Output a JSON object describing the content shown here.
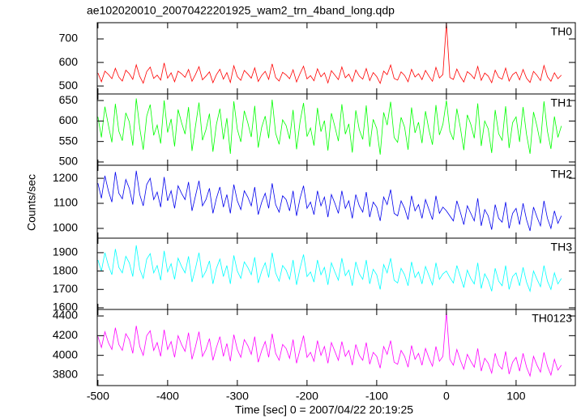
{
  "chart_data": {
    "type": "line",
    "title": "ae102020010_20070422201925_wam2_trn_4band_long.qdp",
    "xlabel": "Time [sec] 0 = 2007/04/22 20:19:25",
    "ylabel": "Counts/sec",
    "xlim": [
      -501,
      185
    ],
    "xticks": [
      -500,
      -400,
      -300,
      -200,
      -100,
      0,
      100
    ],
    "x": [
      -500,
      -495,
      -490,
      -485,
      -480,
      -475,
      -470,
      -465,
      -460,
      -455,
      -450,
      -445,
      -440,
      -435,
      -430,
      -425,
      -420,
      -415,
      -410,
      -405,
      -400,
      -395,
      -390,
      -385,
      -380,
      -375,
      -370,
      -365,
      -360,
      -355,
      -350,
      -345,
      -340,
      -335,
      -330,
      -325,
      -320,
      -315,
      -310,
      -305,
      -300,
      -295,
      -290,
      -285,
      -280,
      -275,
      -270,
      -265,
      -260,
      -255,
      -250,
      -245,
      -240,
      -235,
      -230,
      -225,
      -220,
      -215,
      -210,
      -205,
      -200,
      -195,
      -190,
      -185,
      -180,
      -175,
      -170,
      -165,
      -160,
      -155,
      -150,
      -145,
      -140,
      -135,
      -130,
      -125,
      -120,
      -115,
      -110,
      -105,
      -100,
      -95,
      -90,
      -85,
      -80,
      -75,
      -70,
      -65,
      -60,
      -55,
      -50,
      -45,
      -40,
      -35,
      -30,
      -25,
      -20,
      -15,
      -10,
      -5,
      0,
      5,
      10,
      15,
      20,
      25,
      30,
      35,
      40,
      45,
      50,
      55,
      60,
      65,
      70,
      75,
      80,
      85,
      90,
      95,
      100,
      105,
      110,
      115,
      120,
      125,
      130,
      135,
      140,
      145,
      150,
      155,
      160,
      165
    ],
    "series": [
      {
        "name": "TH0",
        "color": "#ff0000",
        "ylim": [
          466,
          769
        ],
        "yticks": [
          500,
          600,
          700
        ],
        "values": [
          555,
          518,
          563,
          549,
          531,
          575,
          538,
          521,
          567,
          552,
          528,
          590,
          541,
          512,
          561,
          580,
          532,
          546,
          525,
          598,
          533,
          556,
          518,
          563,
          552,
          537,
          570,
          520,
          549,
          582,
          526,
          542,
          560,
          514,
          548,
          571,
          529,
          557,
          515,
          586,
          540,
          524,
          566,
          551,
          533,
          577,
          519,
          545,
          562,
          528,
          594,
          536,
          521,
          558,
          547,
          531,
          569,
          517,
          553,
          584,
          530,
          544,
          522,
          573,
          539,
          556,
          513,
          565,
          546,
          527,
          581,
          535,
          550,
          519,
          568,
          542,
          529,
          574,
          523,
          557,
          540,
          511,
          563,
          548,
          589,
          532,
          525,
          560,
          545,
          518,
          571,
          538,
          552,
          527,
          566,
          541,
          520,
          579,
          534,
          549,
          769,
          536,
          528,
          572,
          540,
          517,
          561,
          549,
          531,
          583,
          524,
          555,
          542,
          514,
          567,
          537,
          529,
          576,
          521,
          548,
          559,
          526,
          570,
          533,
          515,
          562,
          545,
          523,
          587,
          539,
          520,
          556,
          531,
          546
        ]
      },
      {
        "name": "TH1",
        "color": "#00ff00",
        "ylim": [
          492,
          666
        ],
        "yticks": [
          500,
          550,
          600,
          650
        ],
        "values": [
          610,
          560,
          635,
          590,
          548,
          642,
          575,
          552,
          620,
          598,
          540,
          655,
          583,
          530,
          612,
          640,
          565,
          590,
          545,
          650,
          572,
          605,
          538,
          628,
          596,
          568,
          634,
          527,
          588,
          645,
          553,
          579,
          618,
          525,
          592,
          630,
          555,
          607,
          520,
          648,
          580,
          549,
          625,
          596,
          561,
          637,
          535,
          585,
          612,
          558,
          652,
          570,
          543,
          603,
          589,
          556,
          627,
          531,
          598,
          644,
          562,
          583,
          540,
          632,
          574,
          601,
          528,
          619,
          586,
          551,
          641,
          568,
          593,
          523,
          626,
          579,
          555,
          638,
          537,
          604,
          582,
          518,
          621,
          590,
          647,
          560,
          548,
          609,
          585,
          530,
          633,
          571,
          597,
          546,
          624,
          578,
          542,
          639,
          566,
          592,
          650,
          575,
          554,
          630,
          584,
          529,
          615,
          592,
          558,
          643,
          539,
          600,
          581,
          522,
          627,
          569,
          553,
          636,
          534,
          596,
          610,
          549,
          634,
          567,
          520,
          622,
          587,
          545,
          648,
          575,
          532,
          611,
          560,
          588
        ]
      },
      {
        "name": "TH2",
        "color": "#0000ee",
        "ylim": [
          961,
          1252
        ],
        "yticks": [
          1000,
          1100,
          1200
        ],
        "values": [
          1180,
          1120,
          1210,
          1150,
          1105,
          1225,
          1140,
          1118,
          1195,
          1160,
          1095,
          1230,
          1135,
          1090,
          1175,
          1200,
          1115,
          1145,
          1085,
          1205,
          1110,
          1150,
          1080,
          1170,
          1140,
          1115,
          1185,
          1070,
          1130,
          1190,
          1090,
          1115,
          1160,
          1060,
          1120,
          1165,
          1085,
          1135,
          1060,
          1175,
          1110,
          1075,
          1150,
          1125,
          1090,
          1165,
          1055,
          1105,
          1140,
          1080,
          1180,
          1095,
          1065,
          1130,
          1115,
          1070,
          1150,
          1050,
          1120,
          1170,
          1080,
          1105,
          1055,
          1150,
          1090,
          1125,
          1045,
          1135,
          1100,
          1060,
          1150,
          1080,
          1110,
          1040,
          1135,
          1090,
          1065,
          1145,
          1045,
          1105,
          1085,
          1030,
          1125,
          1095,
          1155,
          1060,
          1050,
          1110,
          1080,
          1035,
          1130,
          1070,
          1095,
          1040,
          1115,
          1075,
          1035,
          1130,
          1060,
          1085,
          1070,
          1050,
          1030,
          1110,
          1065,
          1015,
          1090,
          1060,
          1030,
          1120,
          1010,
          1075,
          1050,
          995,
          1095,
          1040,
          1025,
          1105,
          1000,
          1060,
          1080,
          1015,
          1100,
          1035,
          990,
          1085,
          1045,
          1010,
          1110,
          1040,
          1000,
          1070,
          1020,
          1050
        ]
      },
      {
        "name": "TH3",
        "color": "#00ffff",
        "ylim": [
          1591,
          1979
        ],
        "yticks": [
          1600,
          1700,
          1800,
          1900
        ],
        "values": [
          1860,
          1800,
          1900,
          1830,
          1780,
          1920,
          1820,
          1790,
          1880,
          1845,
          1770,
          1940,
          1810,
          1760,
          1865,
          1895,
          1790,
          1830,
          1750,
          1910,
          1795,
          1840,
          1755,
          1870,
          1825,
          1790,
          1880,
          1740,
          1815,
          1900,
          1765,
          1800,
          1855,
          1730,
          1815,
          1865,
          1770,
          1830,
          1730,
          1885,
          1800,
          1760,
          1850,
          1820,
          1780,
          1875,
          1735,
          1800,
          1845,
          1765,
          1900,
          1790,
          1745,
          1830,
          1805,
          1755,
          1860,
          1725,
          1815,
          1890,
          1770,
          1795,
          1740,
          1860,
          1780,
          1820,
          1725,
          1845,
          1795,
          1750,
          1870,
          1775,
          1805,
          1720,
          1850,
          1785,
          1755,
          1860,
          1730,
          1810,
          1780,
          1700,
          1835,
          1790,
          1870,
          1750,
          1735,
          1815,
          1780,
          1720,
          1850,
          1765,
          1795,
          1730,
          1825,
          1775,
          1725,
          1845,
          1755,
          1785,
          1800,
          1765,
          1735,
          1830,
          1770,
          1710,
          1805,
          1760,
          1730,
          1845,
          1705,
          1785,
          1750,
          1690,
          1815,
          1745,
          1720,
          1830,
          1700,
          1770,
          1790,
          1720,
          1820,
          1740,
          1690,
          1800,
          1755,
          1715,
          1830,
          1745,
          1700,
          1790,
          1730,
          1760
        ]
      },
      {
        "name": "TH0123",
        "color": "#ff00ff",
        "ylim": [
          3693,
          4466
        ],
        "yticks": [
          3800,
          4000,
          4200,
          4400
        ],
        "values": [
          4190,
          4080,
          4240,
          4130,
          4060,
          4280,
          4110,
          4050,
          4220,
          4160,
          4020,
          4300,
          4090,
          4000,
          4200,
          4250,
          4050,
          4130,
          3990,
          4260,
          4060,
          4140,
          3980,
          4200,
          4110,
          4040,
          4230,
          3960,
          4090,
          4240,
          3990,
          4060,
          4170,
          3950,
          4080,
          4190,
          3990,
          4120,
          3940,
          4210,
          4060,
          3980,
          4160,
          4100,
          4010,
          4190,
          3930,
          4050,
          4140,
          3980,
          4220,
          4020,
          3950,
          4110,
          4070,
          3970,
          4160,
          3920,
          4060,
          4200,
          3980,
          4030,
          3940,
          4150,
          4000,
          4090,
          3920,
          4130,
          4040,
          3950,
          4140,
          3990,
          4050,
          3900,
          4110,
          4000,
          3950,
          4130,
          3910,
          4030,
          3990,
          3870,
          4090,
          4010,
          4150,
          3930,
          3910,
          4050,
          3990,
          3880,
          4100,
          3960,
          4020,
          3900,
          4070,
          3970,
          3890,
          4090,
          3940,
          3990,
          4440,
          3960,
          3900,
          4060,
          3950,
          3860,
          4010,
          3940,
          3880,
          4070,
          3840,
          3970,
          3920,
          3820,
          4020,
          3900,
          3860,
          4040,
          3810,
          3930,
          3980,
          3840,
          4020,
          3880,
          3790,
          3990,
          3900,
          3830,
          4030,
          3890,
          3800,
          3960,
          3850,
          3900
        ]
      }
    ]
  }
}
